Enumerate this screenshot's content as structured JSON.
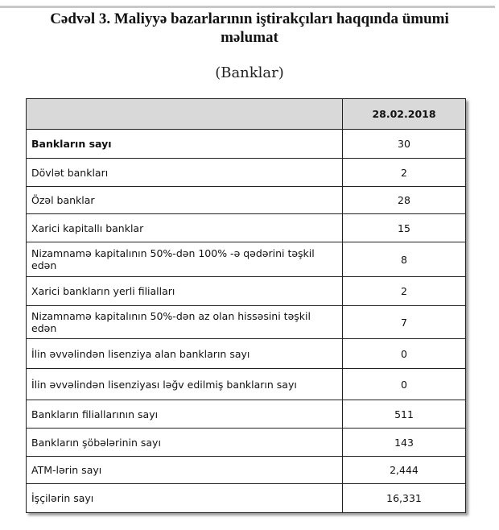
{
  "header": {
    "title": "Cədvəl 3. Maliyyə bazarlarının iştirakçıları haqqında ümumi məlumat",
    "subtitle": "(Banklar)"
  },
  "table": {
    "columns": [
      "",
      "28.02.2018"
    ],
    "rows": [
      [
        "Bankların sayı",
        "30"
      ],
      [
        "Dövlət bankları",
        "2"
      ],
      [
        "Özəl banklar",
        "28"
      ],
      [
        "Xarici kapitallı banklar",
        "15"
      ],
      [
        "Nizamnamə kapitalının 50%-dən 100% -ə qədərini təşkil edən",
        "8"
      ],
      [
        "Xarici bankların yerli filialları",
        "2"
      ],
      [
        "Nizamnamə kapitalının 50%-dən az olan hissəsini  təşkil edən",
        "7"
      ],
      [
        "İlin əvvəlindən lisenziya alan bankların sayı",
        "0"
      ],
      [
        "İlin əvvəlindən lisenziyası ləğv edilmiş bankların sayı",
        "0"
      ],
      [
        "Bankların filiallarının sayı",
        "511"
      ],
      [
        "Bankların şöbələrinin sayı",
        "143"
      ],
      [
        "ATM-lərin sayı",
        "2,444"
      ],
      [
        "İşçilərin sayı",
        "16,331"
      ]
    ]
  }
}
